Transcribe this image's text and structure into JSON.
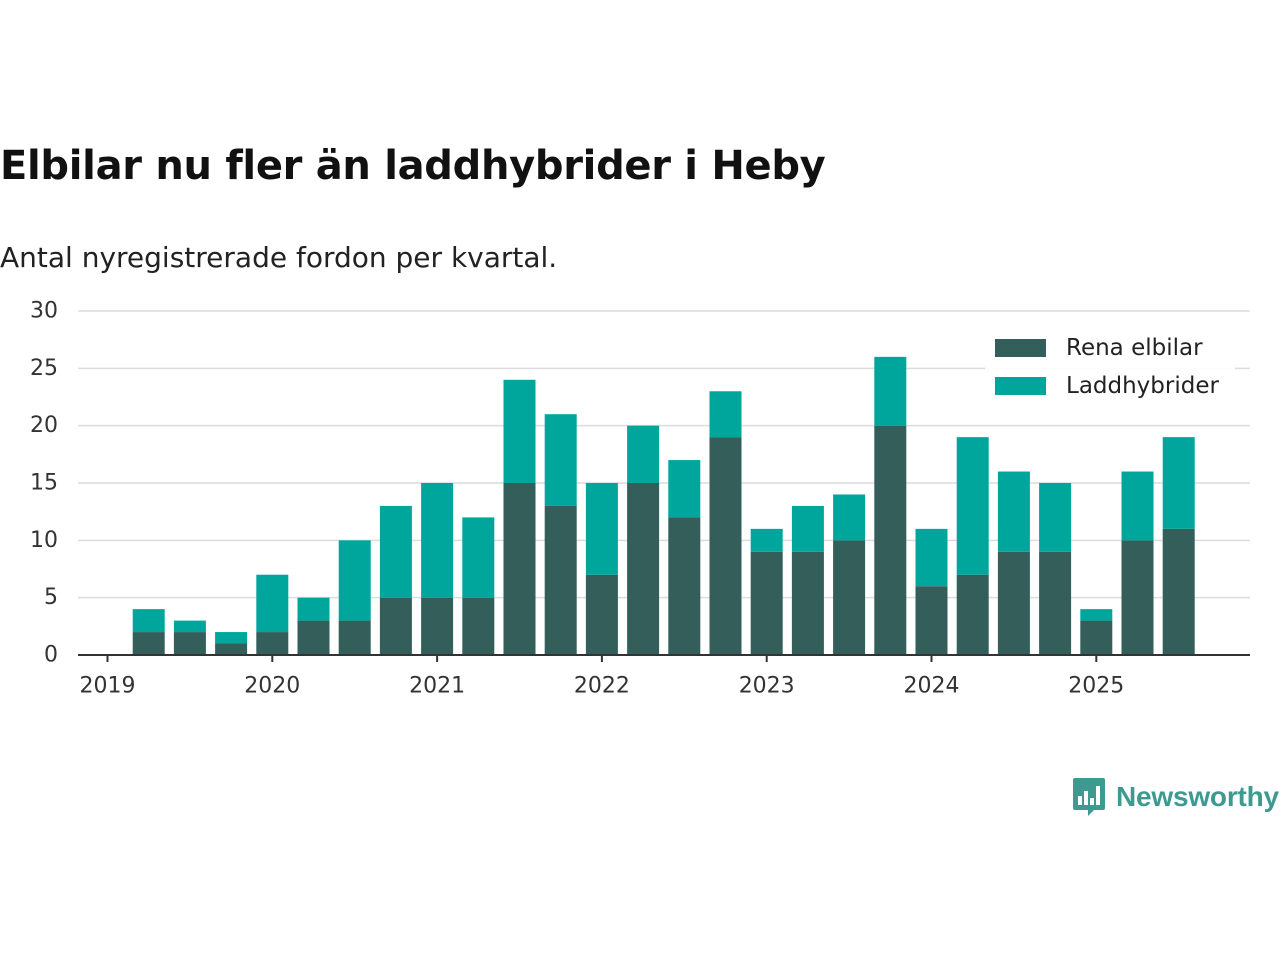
{
  "title": "Elbilar nu fler än laddhybrider i Heby",
  "subtitle": "Antal nyregistrerade fordon per kvartal.",
  "brand": {
    "name": "Newsworthy",
    "icon": "newsworthy-bar-chart-icon",
    "color": "#3e9a91"
  },
  "colors": {
    "rena_elbilar": "#335e59",
    "laddhybrider": "#00a69c",
    "grid": "#dcdcdc",
    "axis": "#333333",
    "text": "#333333"
  },
  "chart_data": {
    "type": "bar",
    "stacked": true,
    "title": "Elbilar nu fler än laddhybrider i Heby",
    "subtitle": "Antal nyregistrerade fordon per kvartal.",
    "xlabel": "",
    "ylabel": "",
    "ylim": [
      0,
      30
    ],
    "yticks": [
      0,
      5,
      10,
      15,
      20,
      25,
      30
    ],
    "xtick_labels": [
      "2019",
      "2020",
      "2021",
      "2022",
      "2023",
      "2024",
      "2025"
    ],
    "grid": true,
    "legend_position": "top-right",
    "categories": [
      "2019 Q1",
      "2019 Q2",
      "2019 Q3",
      "2019 Q4",
      "2020 Q1",
      "2020 Q2",
      "2020 Q3",
      "2020 Q4",
      "2021 Q1",
      "2021 Q2",
      "2021 Q3",
      "2021 Q4",
      "2022 Q1",
      "2022 Q2",
      "2022 Q3",
      "2022 Q4",
      "2023 Q1",
      "2023 Q2",
      "2023 Q3",
      "2023 Q4",
      "2024 Q1",
      "2024 Q2",
      "2024 Q3",
      "2024 Q4",
      "2025 Q1",
      "2025 Q2",
      "2025 Q3"
    ],
    "series": [
      {
        "name": "Rena elbilar",
        "values": [
          0,
          2,
          2,
          1,
          2,
          3,
          3,
          5,
          5,
          5,
          15,
          13,
          7,
          15,
          12,
          19,
          9,
          9,
          10,
          20,
          6,
          7,
          9,
          9,
          3,
          10,
          11
        ]
      },
      {
        "name": "Laddhybrider",
        "values": [
          0,
          2,
          1,
          1,
          5,
          2,
          7,
          8,
          10,
          7,
          9,
          8,
          8,
          5,
          5,
          4,
          2,
          4,
          4,
          6,
          5,
          12,
          7,
          6,
          1,
          6,
          8
        ]
      }
    ]
  }
}
